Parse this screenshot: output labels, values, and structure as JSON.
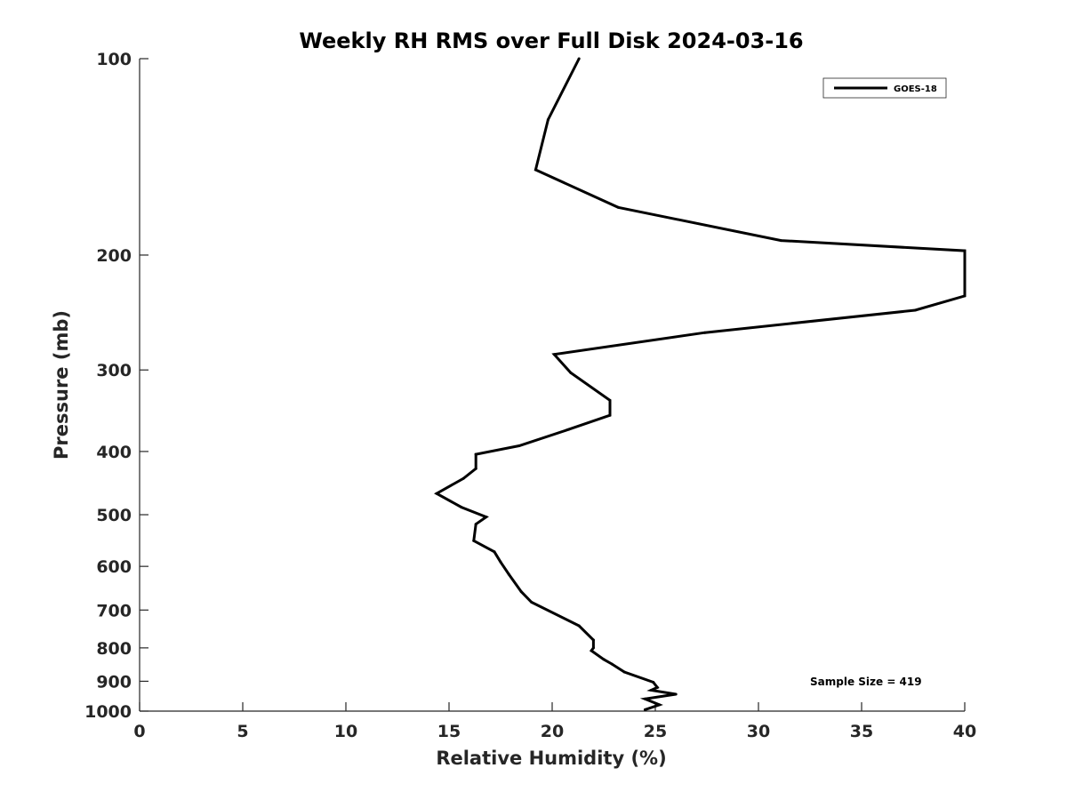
{
  "chart_data": {
    "type": "line",
    "title": "Weekly RH RMS over Full Disk 2024-03-16",
    "xlabel": "Relative Humidity (%)",
    "ylabel": "Pressure (mb)",
    "xlim": [
      0,
      40
    ],
    "ylim": [
      100,
      1000
    ],
    "y_scale": "log",
    "y_reversed": true,
    "grid": false,
    "legend_position": "top-right",
    "x_ticks": [
      0,
      5,
      10,
      15,
      20,
      25,
      30,
      35,
      40
    ],
    "x_tick_labels": [
      "0",
      "5",
      "10",
      "15",
      "20",
      "25",
      "30",
      "35",
      "40"
    ],
    "y_ticks": [
      100,
      200,
      300,
      400,
      500,
      600,
      700,
      800,
      900,
      1000
    ],
    "y_tick_labels": [
      "100",
      "200",
      "300",
      "400",
      "500",
      "600",
      "700",
      "800",
      "900",
      "1000"
    ],
    "annotation": "Sample Size = 419",
    "series": [
      {
        "name": "GOES-18",
        "color": "#000000",
        "x": [
          21.3,
          19.8,
          19.2,
          23.2,
          31.1,
          40.0,
          40.0,
          37.6,
          27.4,
          20.1,
          20.9,
          22.8,
          22.8,
          20.8,
          18.4,
          16.3,
          16.3,
          15.7,
          14.4,
          15.6,
          16.8,
          16.3,
          16.2,
          17.2,
          17.5,
          17.9,
          18.5,
          19.0,
          21.3,
          22.0,
          22.0,
          21.9,
          22.5,
          22.9,
          23.5,
          24.9,
          25.1,
          24.8,
          26.0,
          24.5,
          25.2,
          24.5
        ],
        "y": [
          100,
          124,
          148,
          169,
          190,
          197,
          231,
          243,
          263,
          284,
          303,
          334,
          352,
          370,
          392,
          404,
          425,
          440,
          464,
          487,
          504,
          517,
          548,
          570,
          591,
          617,
          656,
          681,
          740,
          778,
          800,
          808,
          833,
          847,
          871,
          903,
          920,
          929,
          942,
          958,
          978,
          995
        ]
      }
    ]
  }
}
